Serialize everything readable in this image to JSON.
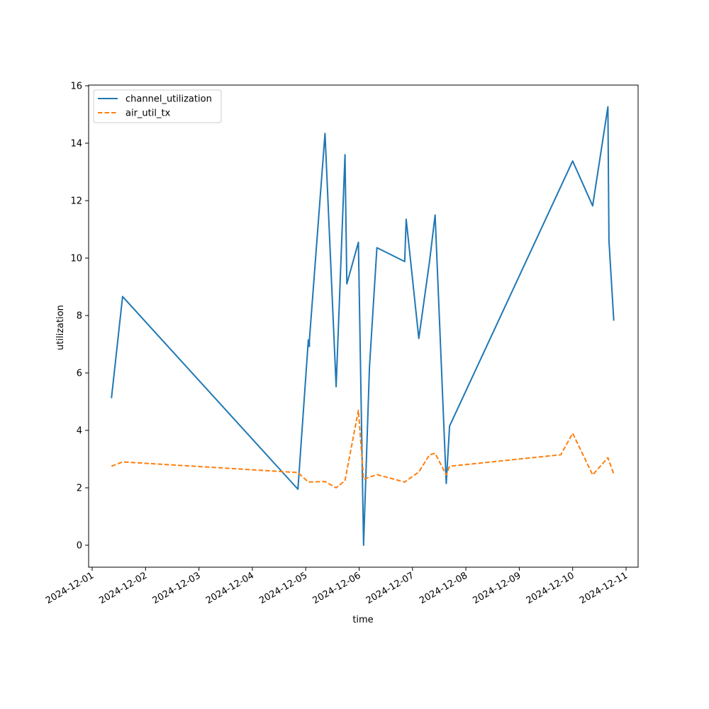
{
  "chart_data": {
    "type": "line",
    "xlabel": "time",
    "ylabel": "utilization",
    "xlim": [
      "2024-12-01",
      "2024-12-11"
    ],
    "ylim": [
      -0.8,
      16
    ],
    "x_ticks": [
      "2024-12-01",
      "2024-12-02",
      "2024-12-03",
      "2024-12-04",
      "2024-12-05",
      "2024-12-06",
      "2024-12-07",
      "2024-12-08",
      "2024-12-09",
      "2024-12-10",
      "2024-12-11"
    ],
    "y_ticks": [
      0,
      2,
      4,
      6,
      8,
      10,
      12,
      14,
      16
    ],
    "grid": false,
    "legend_position": "top-left",
    "series": [
      {
        "name": "channel_utilization",
        "color": "#1f77b4",
        "style": "solid",
        "points": [
          [
            "2024-12-01 08:40",
            5.12
          ],
          [
            "2024-12-01 13:40",
            8.66
          ],
          [
            "2024-12-04 20:30",
            1.95
          ],
          [
            "2024-12-05 01:10",
            7.15
          ],
          [
            "2024-12-05 01:40",
            6.92
          ],
          [
            "2024-12-05 01:40",
            7.15
          ],
          [
            "2024-12-05 08:40",
            14.34
          ],
          [
            "2024-12-05 13:40",
            5.52
          ],
          [
            "2024-12-05 17:40",
            13.6
          ],
          [
            "2024-12-05 18:30",
            9.1
          ],
          [
            "2024-12-05 23:40",
            10.55
          ],
          [
            "2024-12-06 02:00",
            0.0
          ],
          [
            "2024-12-06 04:40",
            6.2
          ],
          [
            "2024-12-06 08:00",
            10.36
          ],
          [
            "2024-12-06 20:30",
            9.88
          ],
          [
            "2024-12-06 21:10",
            11.35
          ],
          [
            "2024-12-07 02:50",
            7.2
          ],
          [
            "2024-12-07 07:40",
            9.9
          ],
          [
            "2024-12-07 10:10",
            11.5
          ],
          [
            "2024-12-07 15:10",
            2.15
          ],
          [
            "2024-12-07 16:40",
            4.15
          ],
          [
            "2024-12-10 00:00",
            13.38
          ],
          [
            "2024-12-10 09:00",
            11.82
          ],
          [
            "2024-12-10 15:50",
            15.27
          ],
          [
            "2024-12-10 16:20",
            10.6
          ],
          [
            "2024-12-10 18:30",
            7.82
          ]
        ]
      },
      {
        "name": "air_util_tx",
        "color": "#ff7f0e",
        "style": "dashed",
        "points": [
          [
            "2024-12-01 08:40",
            2.75
          ],
          [
            "2024-12-01 13:40",
            2.9
          ],
          [
            "2024-12-04 20:30",
            2.53
          ],
          [
            "2024-12-05 01:10",
            2.2
          ],
          [
            "2024-12-05 08:40",
            2.22
          ],
          [
            "2024-12-05 13:40",
            2.0
          ],
          [
            "2024-12-05 17:40",
            2.25
          ],
          [
            "2024-12-05 23:40",
            4.7
          ],
          [
            "2024-12-06 02:00",
            2.3
          ],
          [
            "2024-12-06 08:00",
            2.46
          ],
          [
            "2024-12-06 20:30",
            2.2
          ],
          [
            "2024-12-07 02:50",
            2.55
          ],
          [
            "2024-12-07 07:40",
            3.15
          ],
          [
            "2024-12-07 10:10",
            3.2
          ],
          [
            "2024-12-07 15:10",
            2.45
          ],
          [
            "2024-12-07 16:40",
            2.75
          ],
          [
            "2024-12-09 18:40",
            3.15
          ],
          [
            "2024-12-10 00:00",
            3.9
          ],
          [
            "2024-12-10 09:00",
            2.45
          ],
          [
            "2024-12-10 15:50",
            3.05
          ],
          [
            "2024-12-10 18:30",
            2.48
          ]
        ]
      }
    ]
  }
}
